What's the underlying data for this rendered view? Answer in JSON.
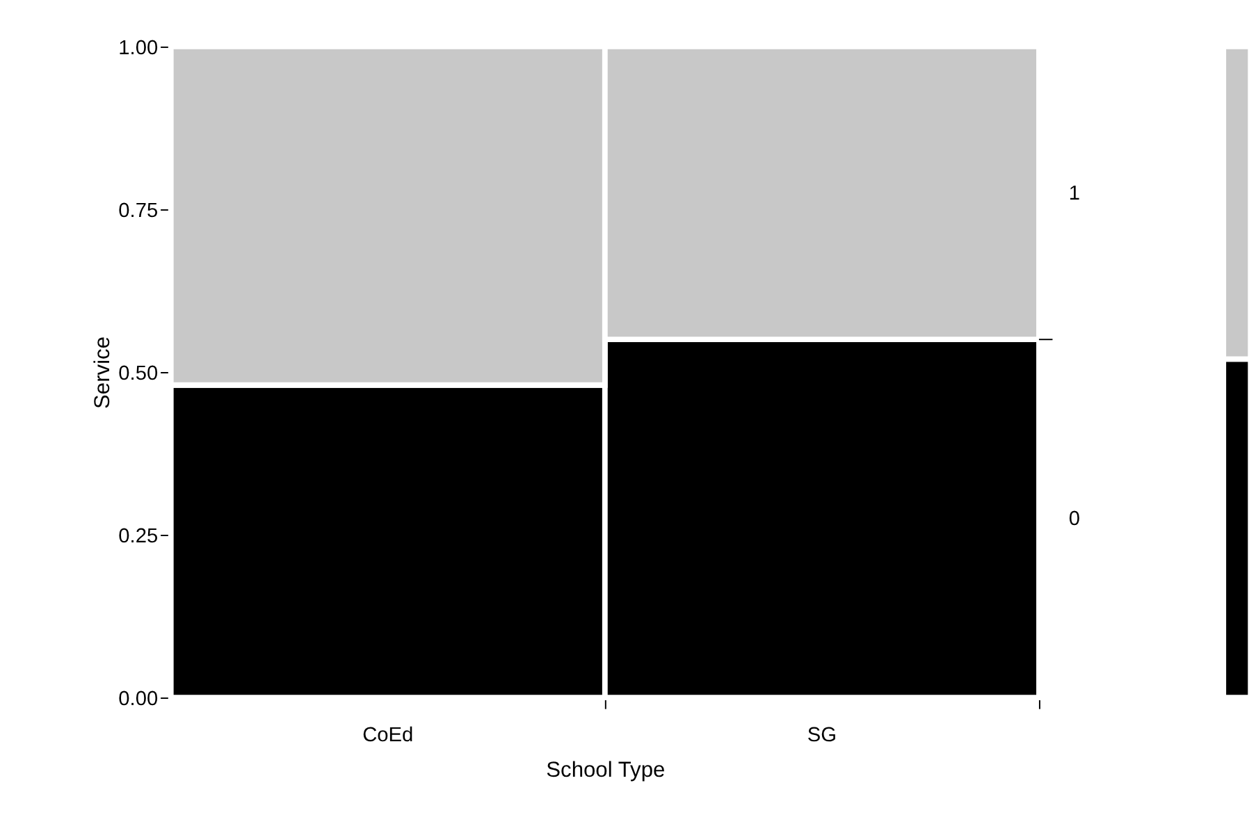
{
  "chart_data": [
    {
      "type": "bar",
      "stacked": true,
      "xlabel": "School Type",
      "ylabel": "Service",
      "categories": [
        "CoEd",
        "SG"
      ],
      "series": [
        {
          "name": "0",
          "color": "#000000",
          "values": [
            0.48,
            0.55
          ]
        },
        {
          "name": "1",
          "color": "#c8c8c8",
          "values": [
            0.52,
            0.45
          ]
        }
      ],
      "ylim": [
        0,
        1
      ],
      "yticks": [
        {
          "value": 0,
          "label": "0.00"
        },
        {
          "value": 0.25,
          "label": "0.25"
        },
        {
          "value": 0.5,
          "label": "0.50"
        },
        {
          "value": 0.75,
          "label": "0.75"
        },
        {
          "value": 1,
          "label": "1.00"
        }
      ]
    },
    {
      "type": "bar",
      "stacked": true,
      "categories": [
        null
      ],
      "series": [
        {
          "color": "#000000",
          "values": [
            0.52
          ]
        },
        {
          "color": "#c8c8c8",
          "values": [
            0.48
          ]
        }
      ],
      "ylim": [
        0,
        1
      ],
      "tick_labels": false
    }
  ]
}
